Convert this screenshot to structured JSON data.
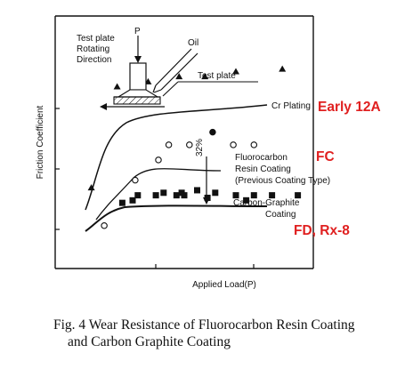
{
  "chart_data": {
    "type": "scatter",
    "title": "",
    "xlabel": "Applied Load(P)",
    "ylabel": "Friction Coefficient",
    "xlim": [
      0,
      100
    ],
    "ylim": [
      0,
      100
    ],
    "series": [
      {
        "name": "Cr Plating",
        "marker": "filled-triangle",
        "tag": "Early 12A",
        "x": [
          14,
          24,
          36,
          48,
          58,
          70,
          88
        ],
        "y": [
          32,
          72,
          74,
          76,
          76,
          78,
          79
        ]
      },
      {
        "name": "Fluorocarbon Resin Coating (Previous Coating Type)",
        "marker": "open-circle",
        "tag": "FC",
        "x": [
          19,
          31,
          40,
          44,
          52,
          61,
          69,
          77
        ],
        "y": [
          17,
          35,
          43,
          49,
          49,
          54,
          49,
          49
        ]
      },
      {
        "name": "Carbon-Graphite Coating",
        "marker": "filled-square",
        "tag": "FD, Rx-8",
        "x": [
          26,
          30,
          32,
          39,
          42,
          47,
          49,
          50,
          55,
          59,
          62,
          70,
          74,
          77,
          84,
          94
        ],
        "y": [
          26,
          27,
          29,
          29,
          30,
          29,
          30,
          29,
          31,
          28,
          30,
          29,
          27,
          29,
          29,
          29
        ]
      }
    ],
    "annotations": {
      "percent": "32%",
      "inset": {
        "force": "P",
        "oil": "Oil",
        "direction": "Test plate Rotating Direction",
        "plate": "Test plate"
      }
    },
    "grid": false,
    "legend": "none (labels placed beside curves)",
    "colors": {
      "ink": "#111111",
      "tag": "#e02020"
    }
  },
  "caption": {
    "line1": "Fig. 4  Wear Resistance of Fluorocarbon Resin Coating",
    "line2": "and Carbon Graphite Coating"
  }
}
